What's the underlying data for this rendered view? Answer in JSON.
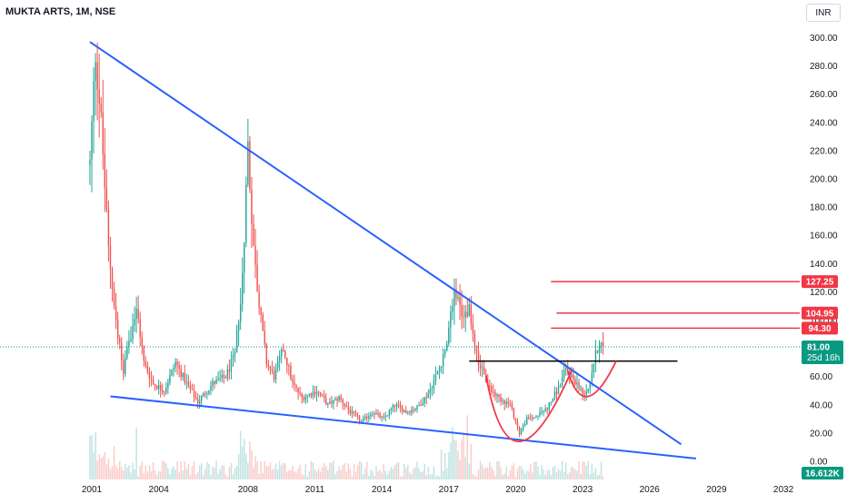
{
  "header": {
    "symbol_title": "MUKTA ARTS, 1M, NSE",
    "currency_label": "INR"
  },
  "colors": {
    "up": "#26a69a",
    "down": "#ef5350",
    "trendline_blue": "#2962ff",
    "level_red": "#f23645",
    "neckline": "#000000",
    "last_price_badge": "#089981",
    "text": "#131722"
  },
  "chart_data": {
    "type": "candlestick",
    "price_axis": {
      "ticks": [
        "300.00",
        "280.00",
        "260.00",
        "240.00",
        "220.00",
        "200.00",
        "180.00",
        "160.00",
        "140.00",
        "120.00",
        "100.00",
        "80.00",
        "60.00",
        "40.00",
        "20.00",
        "0.00"
      ],
      "ylim": [
        0,
        300
      ]
    },
    "time_axis": {
      "ticks": [
        "2001",
        "2004",
        "2008",
        "2011",
        "2014",
        "2017",
        "2020",
        "2023",
        "2026",
        "2029",
        "2032"
      ],
      "xlim": [
        "2000-11",
        "2033-12"
      ]
    },
    "price_labels": [
      {
        "name": "level-127",
        "value": 127.25,
        "text": "127.25"
      },
      {
        "name": "level-105",
        "value": 104.95,
        "text": "104.95"
      },
      {
        "name": "level-94",
        "value": 94.3,
        "text": "94.30"
      }
    ],
    "last_price": {
      "value": 81.0,
      "text": "81.00",
      "countdown": "25d 16h"
    },
    "volume_label": "16.612K",
    "price_series_anchors": [
      [
        "2000-12",
        210
      ],
      [
        "2001-03",
        290
      ],
      [
        "2001-06",
        240
      ],
      [
        "2001-10",
        150
      ],
      [
        "2002-02",
        100
      ],
      [
        "2002-06",
        65
      ],
      [
        "2002-10",
        90
      ],
      [
        "2003-01",
        110
      ],
      [
        "2003-05",
        70
      ],
      [
        "2003-10",
        55
      ],
      [
        "2004-04",
        50
      ],
      [
        "2004-10",
        70
      ],
      [
        "2005-04",
        55
      ],
      [
        "2005-10",
        42
      ],
      [
        "2006-06",
        55
      ],
      [
        "2007-01",
        60
      ],
      [
        "2007-06",
        75
      ],
      [
        "2007-10",
        130
      ],
      [
        "2008-01",
        225
      ],
      [
        "2008-04",
        150
      ],
      [
        "2008-07",
        110
      ],
      [
        "2008-11",
        70
      ],
      [
        "2009-03",
        60
      ],
      [
        "2009-08",
        80
      ],
      [
        "2010-01",
        55
      ],
      [
        "2010-06",
        45
      ],
      [
        "2011-02",
        50
      ],
      [
        "2011-08",
        40
      ],
      [
        "2012-02",
        45
      ],
      [
        "2012-08",
        35
      ],
      [
        "2013-02",
        28
      ],
      [
        "2013-08",
        35
      ],
      [
        "2014-02",
        30
      ],
      [
        "2014-08",
        40
      ],
      [
        "2015-02",
        35
      ],
      [
        "2015-08",
        38
      ],
      [
        "2016-02",
        48
      ],
      [
        "2016-06",
        60
      ],
      [
        "2016-12",
        80
      ],
      [
        "2017-04",
        125
      ],
      [
        "2017-08",
        100
      ],
      [
        "2017-12",
        110
      ],
      [
        "2018-04",
        75
      ],
      [
        "2018-08",
        60
      ],
      [
        "2018-12",
        50
      ],
      [
        "2019-04",
        45
      ],
      [
        "2019-10",
        40
      ],
      [
        "2020-03",
        20
      ],
      [
        "2020-07",
        30
      ],
      [
        "2020-12",
        32
      ],
      [
        "2021-06",
        38
      ],
      [
        "2021-12",
        52
      ],
      [
        "2022-04",
        65
      ],
      [
        "2022-07",
        60
      ],
      [
        "2022-10",
        55
      ],
      [
        "2023-01",
        48
      ],
      [
        "2023-04",
        52
      ],
      [
        "2023-07",
        70
      ],
      [
        "2023-10",
        85
      ],
      [
        "2023-12",
        81
      ]
    ],
    "drawings": {
      "upper_trendline": [
        [
          "2000-12",
          297
        ],
        [
          "2027-06",
          12
        ]
      ],
      "lower_trendline": [
        [
          "2001-11",
          46
        ],
        [
          "2028-02",
          2
        ]
      ],
      "neckline": [
        [
          "2017-12",
          71
        ],
        [
          "2027-04",
          71
        ]
      ],
      "cup_arc": [
        [
          "2018-09",
          61
        ],
        [
          "2020-03",
          14
        ],
        [
          "2022-07",
          64
        ]
      ],
      "handle_arc": [
        [
          "2022-05",
          64
        ],
        [
          "2023-04",
          46
        ],
        [
          "2024-07",
          71
        ]
      ],
      "levels": [
        {
          "price": 127.25,
          "from": "2021-08"
        },
        {
          "price": 104.95,
          "from": "2021-11"
        },
        {
          "price": 94.3,
          "from": "2021-08"
        }
      ]
    }
  }
}
